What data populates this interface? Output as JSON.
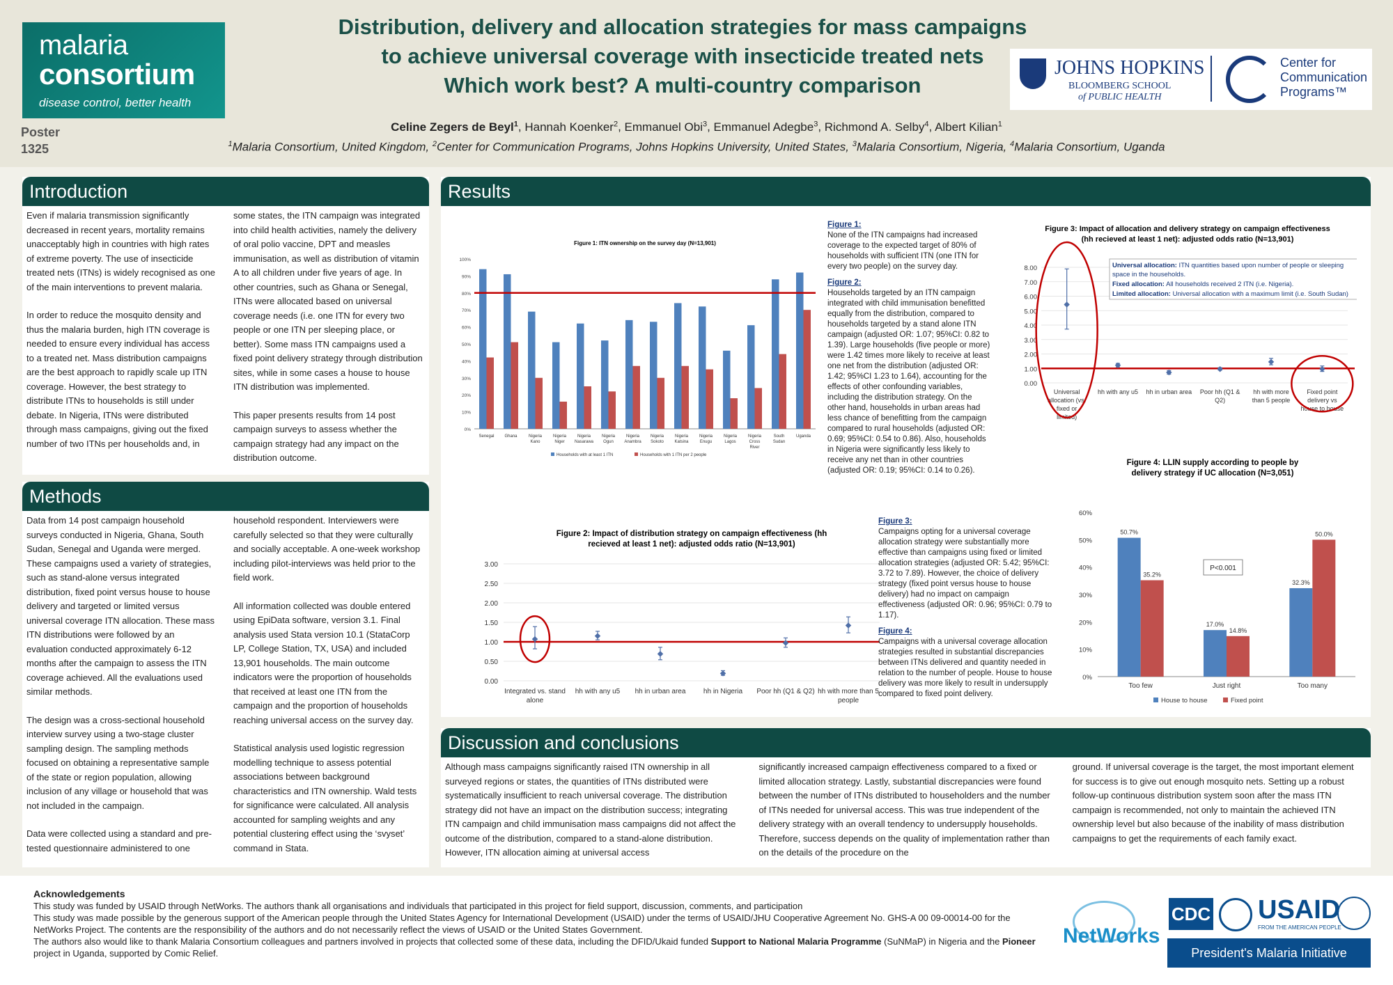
{
  "header": {
    "logo": {
      "line1": "malaria",
      "line2": "consortium",
      "tagline": "disease control, better health"
    },
    "poster_label": "Poster",
    "poster_number": "1325",
    "title_line1": "Distribution, delivery and allocation strategies for mass campaigns",
    "title_line2": "to achieve universal coverage with insecticide treated nets",
    "title_line3": "Which work best? A multi-country comparison",
    "partner": {
      "name": "JOHNS HOPKINS",
      "sub1": "BLOOMBERG SCHOOL",
      "sub2": "of PUBLIC HEALTH",
      "ccp1": "Center for",
      "ccp2": "Communication",
      "ccp3": "Programs™"
    },
    "authors": [
      {
        "name": "Celine Zegers de Beyl",
        "sup": "1",
        "bold": true
      },
      {
        "name": "Hannah Koenker",
        "sup": "2"
      },
      {
        "name": "Emmanuel Obi",
        "sup": "3"
      },
      {
        "name": "Emmanuel Adegbe",
        "sup": "3"
      },
      {
        "name": "Richmond A. Selby",
        "sup": "4"
      },
      {
        "name": "Albert Kilian",
        "sup": "1"
      }
    ],
    "affiliations": [
      {
        "sup": "1",
        "text": "Malaria Consortium, United Kingdom, "
      },
      {
        "sup": "2",
        "text": "Center for Communication Programs, Johns Hopkins University, United States, "
      },
      {
        "sup": "3",
        "text": "Malaria Consortium, Nigeria, "
      },
      {
        "sup": "4",
        "text": "Malaria Consortium, Uganda"
      }
    ]
  },
  "introduction": {
    "heading": "Introduction",
    "col1": [
      "Even if malaria transmission significantly decreased in recent years, mortality remains unacceptably high in countries with high rates of extreme poverty.  The use of insecticide treated nets (ITNs) is widely recognised as one of the main interventions to prevent malaria.",
      "In order to reduce the mosquito density and thus the malaria burden, high ITN coverage is needed to ensure every individual has access to a treated net. Mass distribution campaigns are the best approach to rapidly scale up ITN coverage. However, the best strategy to distribute ITNs to households is still under debate. In Nigeria, ITNs were distributed through mass campaigns, giving out the fixed number of two ITNs per households and, in"
    ],
    "col2": [
      "some states, the ITN campaign was integrated into child health activities, namely the delivery of oral polio vaccine, DPT and measles immunisation, as well as distribution of vitamin A to all children under five years of age. In other countries, such as Ghana or Senegal, ITNs were allocated based on universal coverage needs (i.e. one ITN for every two people or one ITN per sleeping place, or better). Some mass ITN campaigns used a fixed point delivery strategy through distribution sites, while in some cases a house to house ITN distribution was implemented.",
      "This paper presents results from 14 post campaign surveys to assess whether the campaign strategy had any impact on the distribution outcome."
    ]
  },
  "methods": {
    "heading": "Methods",
    "col1": [
      "Data from 14 post campaign household surveys conducted in Nigeria, Ghana, South Sudan, Senegal and Uganda were merged. These campaigns used a variety of strategies, such as stand-alone versus integrated distribution, fixed point versus house to house delivery and targeted or limited versus universal coverage ITN allocation. These mass ITN distributions were followed by an evaluation conducted approximately 6-12 months after the campaign to assess the ITN coverage achieved.  All the evaluations used similar methods.",
      "The design was a cross-sectional household interview survey using a two-stage cluster sampling design. The sampling methods focused on obtaining a representative sample of the state or region population, allowing inclusion of any village or household that was not included in the campaign.",
      "Data were collected using a standard and pre-tested questionnaire administered to one"
    ],
    "col2": [
      "household respondent. Interviewers were carefully selected so that they were culturally and socially acceptable. A one-week workshop including pilot-interviews was held prior to the field work.",
      "All information collected was double entered using EpiData software, version 3.1. Final analysis used Stata version 10.1 (StataCorp LP, College Station, TX, USA) and included 13,901 households. The main outcome indicators were the proportion of households that received at least one ITN from the campaign and the proportion of households reaching universal access on the survey day.",
      "Statistical analysis used logistic regression modelling technique to assess potential associations between background characteristics and ITN ownership. Wald tests for significance were calculated. All analysis accounted for sampling weights and any potential clustering effect using the ‘svyset’ command in Stata."
    ]
  },
  "results": {
    "heading": "Results",
    "captions_right": [
      {
        "title": "Figure 1:",
        "text": "None of the ITN campaigns had increased coverage to the expected target of 80% of households with sufficient ITN (one ITN for every two people) on the survey day."
      },
      {
        "title": "Figure 2:",
        "text": "Households targeted by an ITN campaign integrated with child immunisation benefitted equally from the distribution, compared to households targeted by a stand alone ITN campaign (adjusted OR: 1.07; 95%CI: 0.82 to 1.39). Large households (five people or more) were 1.42 times more likely to receive at least one net from the distribution (adjusted OR: 1.42; 95%CI 1.23 to 1.64), accounting for the effects of other confounding variables, including the distribution strategy. On the other hand, households in urban areas had less chance of benefitting from the campaign compared to rural households (adjusted OR: 0.69; 95%CI: 0.54 to 0.86). Also, households in Nigeria were significantly less likely to receive any net than in other countries (adjusted OR: 0.19; 95%CI: 0.14 to 0.26)."
      }
    ],
    "captions_mid": [
      {
        "title": "Figure 3:",
        "text": "Campaigns opting for a universal coverage allocation strategy were substantially more effective than campaigns using fixed or limited allocation strategies (adjusted OR: 5.42; 95%CI: 3.72 to 7.89). However, the choice of delivery strategy (fixed point versus house to house delivery) had no impact on campaign effectiveness (adjusted OR: 0.96; 95%CI: 0.79 to 1.17)."
      },
      {
        "title": "Figure 4:",
        "text": "Campaigns with a universal coverage allocation strategies resulted in substantial discrepancies between ITNs delivered and quantity needed in relation to the number of people.  House to house delivery was more likely to result in undersupply compared to fixed point delivery."
      }
    ],
    "fig3_legend": [
      {
        "label": "Universal allocation:",
        "text": " ITN quantities based upon number of people or sleeping space in the households."
      },
      {
        "label": "Fixed allocation:",
        "text": " All households received 2 ITN (i.e. Nigeria)."
      },
      {
        "label": "Limited allocation:",
        "text": " Universal allocation with a maximum limit (i.e. South Sudan)"
      }
    ],
    "fig4_pvalue": "P<0.001"
  },
  "discussion": {
    "heading": "Discussion and conclusions",
    "col1": "Although mass campaigns significantly raised ITN ownership in all surveyed regions or states, the quantities of ITNs distributed were systematically insufficient to reach universal coverage. The distribution strategy did not have an impact on the distribution success; integrating ITN campaign and child immunisation mass campaigns did not affect the outcome of the distribution, compared to a stand-alone distribution. However, ITN allocation aiming at universal access",
    "col2": "significantly increased campaign effectiveness compared to a fixed or limited allocation strategy. Lastly, substantial discrepancies were found between the number of ITNs distributed to householders and the number of ITNs needed for universal access. This was true independent of the delivery strategy with an overall tendency to undersupply households. Therefore, success depends on the quality of implementation rather than on the details of the procedure on the",
    "col3": "ground. If universal coverage is the target, the most important element for success is to give out enough mosquito nets. Setting up a robust follow-up continuous distribution system soon after the mass ITN campaign is recommended, not only to maintain the achieved ITN ownership level but also because of the inability of mass distribution campaigns to get the requirements of each family exact."
  },
  "acknowledgements": {
    "heading": "Acknowledgements",
    "line1": "This study was funded by USAID through NetWorks. The authors thank all organisations and individuals that participated in this project for field support, discussion, comments, and participation",
    "line2": "This study was made possible by the generous support of the American people through the United States Agency for International Development (USAID) under the terms of USAID/JHU Cooperative Agreement No. GHS-A 00 09-00014-00 for the NetWorks Project. The contents are the responsibility of the authors and do not necessarily reflect the views of USAID or the United States Government.",
    "line3a": "The authors also would like to thank Malaria Consortium colleagues and partners involved in projects that collected some of these data, including the DFID/Ukaid funded ",
    "line3b": "Support to National Malaria Programme",
    "line3c": " (SuNMaP) in Nigeria and the ",
    "line3d": "Pioneer",
    "line3e": " project in Uganda, supported by Comic Relief."
  },
  "footer_logos": {
    "networks": "NetWorks",
    "cdc": "CDC",
    "usaid": "USAID",
    "usaid_sub": "FROM THE AMERICAN PEOPLE",
    "pmi": "President's Malaria Initiative"
  },
  "colors": {
    "blue": "#4f81bd",
    "red": "#c0504d",
    "dark_red": "#c00000",
    "teal": "#0f4a44"
  },
  "chart_data": [
    {
      "id": "fig1",
      "type": "bar",
      "title": "Figure 1: ITN ownership on the survey day (N=13,901)",
      "categories": [
        "Senegal",
        "Ghana",
        "Nigeria Kano",
        "Nigeria Niger",
        "Nigeria Nasarawa",
        "Nigeria Ogun",
        "Nigeria Anambra",
        "Nigeria Sokoto",
        "Nigeria Katsina",
        "Nigeria Enugu",
        "Nigeria Lagos",
        "Nigeria Cross River",
        "South Sudan",
        "Uganda"
      ],
      "series": [
        {
          "name": "Households with at least 1 ITN",
          "values": [
            94,
            91,
            69,
            51,
            62,
            52,
            64,
            63,
            74,
            72,
            46,
            61,
            88,
            92
          ]
        },
        {
          "name": "Households with 1 ITN per 2 people",
          "values": [
            42,
            51,
            30,
            16,
            25,
            22,
            37,
            30,
            37,
            35,
            18,
            24,
            44,
            70
          ]
        }
      ],
      "ylim": [
        0,
        100
      ],
      "yticks": [
        "0%",
        "10%",
        "20%",
        "30%",
        "40%",
        "50%",
        "60%",
        "70%",
        "80%",
        "90%",
        "100%"
      ],
      "reference_line": 80
    },
    {
      "id": "fig2",
      "type": "scatter",
      "title": "Figure 2: Impact of distribution strategy on campaign effectiveness (hh recieved at least 1 net): adjusted odds ratio (N=13,901)",
      "categories": [
        "Integrated vs. stand alone",
        "hh with any u5",
        "hh in urban area",
        "hh in Nigeria",
        "Poor hh (Q1 & Q2)",
        "hh with more than 5 people"
      ],
      "values": [
        1.07,
        1.15,
        0.69,
        0.19,
        0.97,
        1.42
      ],
      "ci_low": [
        0.82,
        1.05,
        0.54,
        0.14,
        0.86,
        1.23
      ],
      "ci_high": [
        1.39,
        1.27,
        0.86,
        0.26,
        1.1,
        1.64
      ],
      "ylim": [
        0,
        3
      ],
      "yticks": [
        "0.00",
        "0.50",
        "1.00",
        "1.50",
        "2.00",
        "2.50",
        "3.00"
      ],
      "reference_line": 1
    },
    {
      "id": "fig3",
      "type": "scatter",
      "title": "Figure 3: Impact of allocation and delivery strategy on campaign effectiveness (hh recieved at least 1 net): adjusted odds ratio (N=13,901)",
      "categories": [
        "Universal allocation (vs. fixed or limited)",
        "hh with any u5",
        "hh in urban area",
        "Poor hh (Q1 & Q2)",
        "hh with more than 5 people",
        "Fixed point delivery vs house to house"
      ],
      "values": [
        5.42,
        1.22,
        0.72,
        0.95,
        1.45,
        0.96
      ],
      "ci_low": [
        3.72,
        1.1,
        0.6,
        0.88,
        1.25,
        0.79
      ],
      "ci_high": [
        7.89,
        1.35,
        0.85,
        1.05,
        1.7,
        1.17
      ],
      "ylim": [
        0,
        8
      ],
      "yticks": [
        "0.00",
        "1.00",
        "2.00",
        "3.00",
        "4.00",
        "5.00",
        "6.00",
        "7.00",
        "8.00"
      ],
      "reference_line": 1
    },
    {
      "id": "fig4",
      "type": "bar",
      "title": "Figure 4: LLIN supply according to people by delivery strategy if UC allocation (N=3,051)",
      "categories": [
        "Too few",
        "Just right",
        "Too many"
      ],
      "series": [
        {
          "name": "House to house",
          "values": [
            50.7,
            17.0,
            32.3
          ],
          "labels": [
            "50.7%",
            "17.0%",
            "32.3%"
          ]
        },
        {
          "name": "Fixed point",
          "values": [
            35.2,
            14.8,
            50.0
          ],
          "labels": [
            "35.2%",
            "14.8%",
            "50.0%"
          ]
        }
      ],
      "ylim": [
        0,
        60
      ],
      "yticks": [
        "0%",
        "10%",
        "20%",
        "30%",
        "40%",
        "50%",
        "60%"
      ]
    }
  ]
}
